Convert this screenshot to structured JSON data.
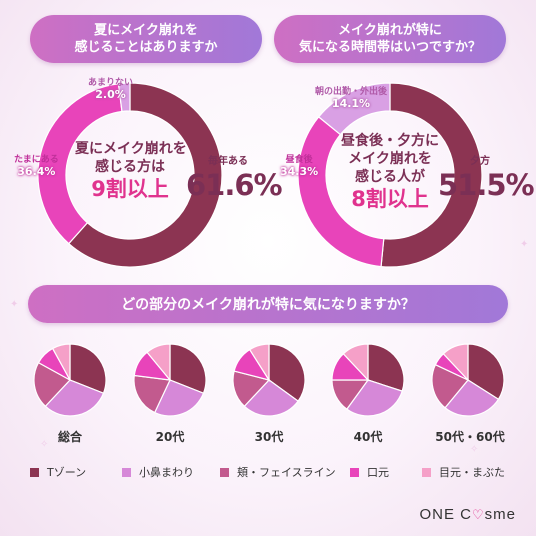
{
  "colors": {
    "t_zone": "#8c3452",
    "nose": "#d688d8",
    "cheek": "#c25a8e",
    "mouth": "#e844ba",
    "eyes": "#f5a0c8",
    "accent": "#e0338e",
    "dark": "#7b2f55"
  },
  "panel1": {
    "question": [
      "夏にメイク崩れを",
      "感じることはありますか"
    ],
    "center_line1": "夏にメイク崩れを",
    "center_line2": "感じる方は",
    "center_big": "9割以上"
  },
  "panel2": {
    "question": [
      "メイク崩れが特に",
      "気になる時間帯はいつですか？"
    ],
    "center_line1": "昼食後・夕方に",
    "center_line2": "メイク崩れを",
    "center_line3": "感じる人が",
    "center_big": "8割以上"
  },
  "panel3": {
    "question": "どの部分のメイク崩れが特に気になりますか？"
  },
  "logo": {
    "text_a": "ONE C",
    "heart": "♡",
    "text_b": "sme"
  },
  "chart_data": [
    {
      "type": "pie",
      "title": "夏にメイク崩れを感じることはありますか",
      "donut": true,
      "labels": [
        "毎年ある",
        "たまにある",
        "あまりない"
      ],
      "values": [
        61.6,
        36.4,
        2.0
      ],
      "display_values": [
        "61.6%",
        "36.4%",
        "2.0%"
      ],
      "colors": [
        "#8c3452",
        "#e844ba",
        "#d9a0e4"
      ]
    },
    {
      "type": "pie",
      "title": "メイク崩れが特に気になる時間帯はいつですか？",
      "donut": true,
      "labels": [
        "夕方",
        "昼食後",
        "朝の出勤・外出後"
      ],
      "values": [
        51.5,
        34.3,
        14.1
      ],
      "display_values": [
        "51.5%",
        "34.3%",
        "14.1%"
      ],
      "colors": [
        "#8c3452",
        "#e844ba",
        "#d9a0e4"
      ]
    },
    {
      "type": "pie",
      "title": "どの部分のメイク崩れが特に気になりますか？",
      "legend": [
        "Tゾーン",
        "小鼻まわり",
        "頬・フェイスライン",
        "口元",
        "目元・まぶた"
      ],
      "groups": [
        "総合",
        "20代",
        "30代",
        "40代",
        "50代・60代"
      ],
      "series": [
        {
          "name": "総合",
          "values": [
            31,
            31,
            21,
            9,
            8
          ]
        },
        {
          "name": "20代",
          "values": [
            31,
            26,
            20,
            12,
            11
          ]
        },
        {
          "name": "30代",
          "values": [
            35,
            27,
            17,
            12,
            9
          ]
        },
        {
          "name": "40代",
          "values": [
            30,
            30,
            15,
            13,
            12
          ]
        },
        {
          "name": "50代・60代",
          "values": [
            34,
            27,
            21,
            6,
            12
          ]
        }
      ]
    }
  ]
}
